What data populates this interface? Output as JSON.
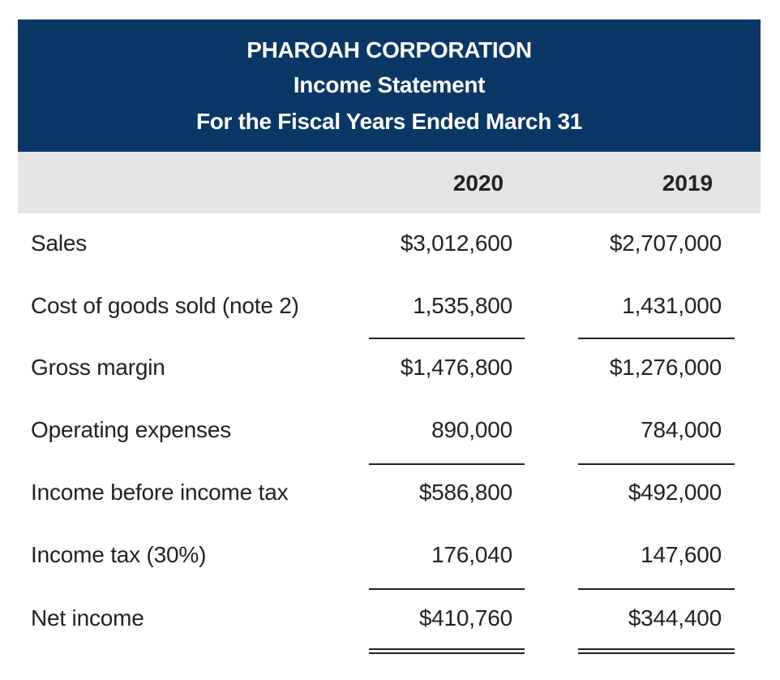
{
  "header": {
    "company": "PHAROAH CORPORATION",
    "statement": "Income Statement",
    "period": "For the Fiscal Years Ended March 31"
  },
  "columns": [
    "2020",
    "2019"
  ],
  "rows": [
    {
      "label": "Sales",
      "v2020": "$3,012,600",
      "v2019": "$2,707,000"
    },
    {
      "label": "Cost of goods sold (note 2)",
      "v2020": "1,535,800",
      "v2019": "1,431,000"
    },
    {
      "label": "Gross margin",
      "v2020": "$1,476,800",
      "v2019": "$1,276,000"
    },
    {
      "label": "Operating expenses",
      "v2020": "890,000",
      "v2019": "784,000"
    },
    {
      "label": "Income before income tax",
      "v2020": "$586,800",
      "v2019": "$492,000"
    },
    {
      "label": "Income tax (30%)",
      "v2020": "176,040",
      "v2019": "147,600"
    },
    {
      "label": "Net income",
      "v2020": "$410,760",
      "v2019": "$344,400"
    }
  ],
  "colors": {
    "header_bg": "#0a3766",
    "column_header_bg": "#e4e4e4"
  }
}
